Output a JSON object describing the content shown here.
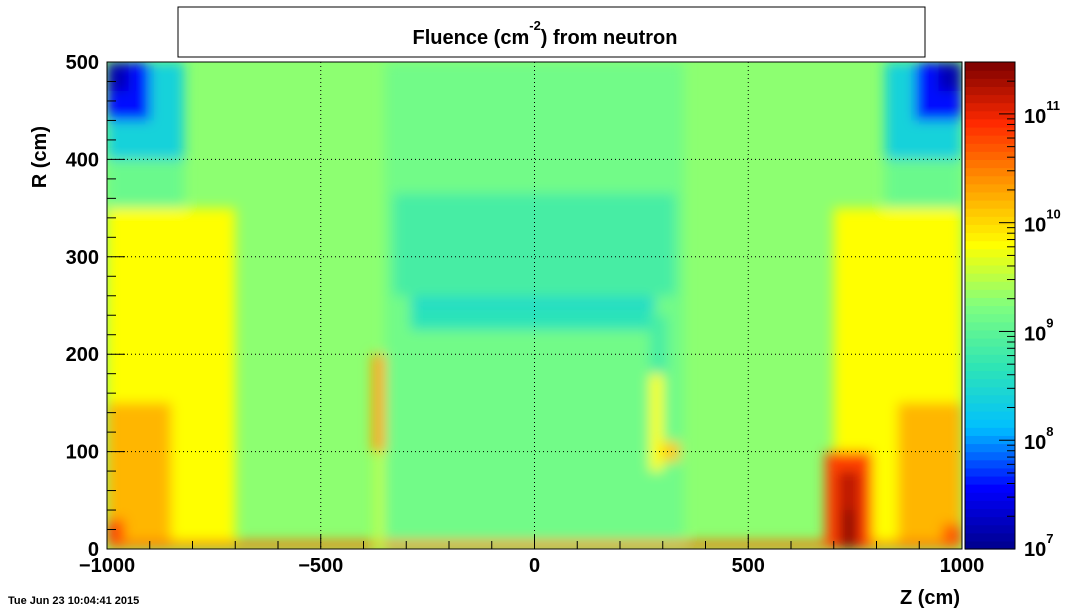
{
  "chart_data": {
    "type": "heatmap",
    "title": "Fluence (cm",
    "title_sup": "-2",
    "title_tail": ") from   neutron",
    "xlabel": "Z (cm)",
    "ylabel": "R (cm)",
    "xlim": [
      -1000,
      1000
    ],
    "ylim": [
      0,
      500
    ],
    "x_ticks": [
      -1000,
      -500,
      0,
      500,
      1000
    ],
    "x_tick_labels": [
      "−1000",
      "−500",
      "0",
      "500",
      "1000"
    ],
    "y_ticks": [
      0,
      100,
      200,
      300,
      400,
      500
    ],
    "y_tick_labels": [
      "0",
      "100",
      "200",
      "300",
      "400",
      "500"
    ],
    "grid": true,
    "color_scale": "log",
    "colorbar_range": [
      10000000,
      300000000000
    ],
    "colorbar_ticks": [
      {
        "base": "10",
        "exp": "7",
        "value": 10000000
      },
      {
        "base": "10",
        "exp": "8",
        "value": 100000000
      },
      {
        "base": "10",
        "exp": "9",
        "value": 1000000000
      },
      {
        "base": "10",
        "exp": "10",
        "value": 10000000000
      },
      {
        "base": "10",
        "exp": "11",
        "value": 100000000000
      }
    ],
    "palette": [
      "#00008b",
      "#0000ff",
      "#00bfff",
      "#2ee5b5",
      "#7fff7f",
      "#ffff00",
      "#ff9900",
      "#ff2a00",
      "#7a0000"
    ],
    "timestamp": "Tue Jun 23 10:04:41 2015",
    "background_log10": 9.3,
    "field_regions": [
      {
        "z": [
          -1000,
          -820
        ],
        "r": [
          0,
          500
        ],
        "log10": 9.1
      },
      {
        "z": [
          820,
          1000
        ],
        "r": [
          0,
          500
        ],
        "log10": 9.1
      },
      {
        "z": [
          -350,
          350
        ],
        "r": [
          0,
          500
        ],
        "log10": 9.15
      },
      {
        "z": [
          -1000,
          -700
        ],
        "r": [
          0,
          350
        ],
        "log10": 9.8
      },
      {
        "z": [
          700,
          1000
        ],
        "r": [
          0,
          350
        ],
        "log10": 9.8
      },
      {
        "z": [
          -1000,
          -850
        ],
        "r": [
          0,
          150
        ],
        "log10": 10.2
      },
      {
        "z": [
          850,
          1000
        ],
        "r": [
          0,
          150
        ],
        "log10": 10.2
      },
      {
        "z": [
          -1000,
          -960
        ],
        "r": [
          0,
          30
        ],
        "log10": 10.8
      },
      {
        "z": [
          955,
          1000
        ],
        "r": [
          0,
          25
        ],
        "log10": 10.7
      },
      {
        "z": [
          -1000,
          1000
        ],
        "r": [
          0,
          8
        ],
        "log10": 10.6
      },
      {
        "z": [
          -380,
          -350
        ],
        "r": [
          100,
          200
        ],
        "log10": 10.3
      },
      {
        "z": [
          -370,
          -355
        ],
        "r": [
          0,
          100
        ],
        "log10": 9.6
      },
      {
        "z": [
          270,
          300
        ],
        "r": [
          80,
          180
        ],
        "log10": 9.8
      },
      {
        "z": [
          300,
          340
        ],
        "r": [
          90,
          110
        ],
        "log10": 10.1
      },
      {
        "z": [
          -330,
          330
        ],
        "r": [
          260,
          365
        ],
        "log10": 8.85
      },
      {
        "z": [
          -290,
          280
        ],
        "r": [
          225,
          260
        ],
        "log10": 8.65
      },
      {
        "z": [
          -285,
          285
        ],
        "r": [
          250,
          255
        ],
        "log10": 8.45
      },
      {
        "z": [
          270,
          310
        ],
        "r": [
          180,
          240
        ],
        "log10": 8.85
      },
      {
        "z": [
          -1000,
          -820
        ],
        "r": [
          400,
          500
        ],
        "log10": 8.4
      },
      {
        "z": [
          820,
          1000
        ],
        "r": [
          400,
          500
        ],
        "log10": 8.4
      },
      {
        "z": [
          -1000,
          -900
        ],
        "r": [
          440,
          500
        ],
        "log10": 7.6
      },
      {
        "z": [
          890,
          1000
        ],
        "r": [
          440,
          500
        ],
        "log10": 7.6
      },
      {
        "z": [
          -1000,
          -950
        ],
        "r": [
          470,
          500
        ],
        "log10": 7.2
      },
      {
        "z": [
          945,
          1000
        ],
        "r": [
          470,
          500
        ],
        "log10": 7.2
      },
      {
        "z": [
          680,
          790
        ],
        "r": [
          0,
          100
        ],
        "log10": 10.8
      },
      {
        "z": [
          710,
          760
        ],
        "r": [
          0,
          80
        ],
        "log10": 11.2
      },
      {
        "z": [
          725,
          745
        ],
        "r": [
          0,
          40
        ],
        "log10": 11.5
      }
    ]
  }
}
